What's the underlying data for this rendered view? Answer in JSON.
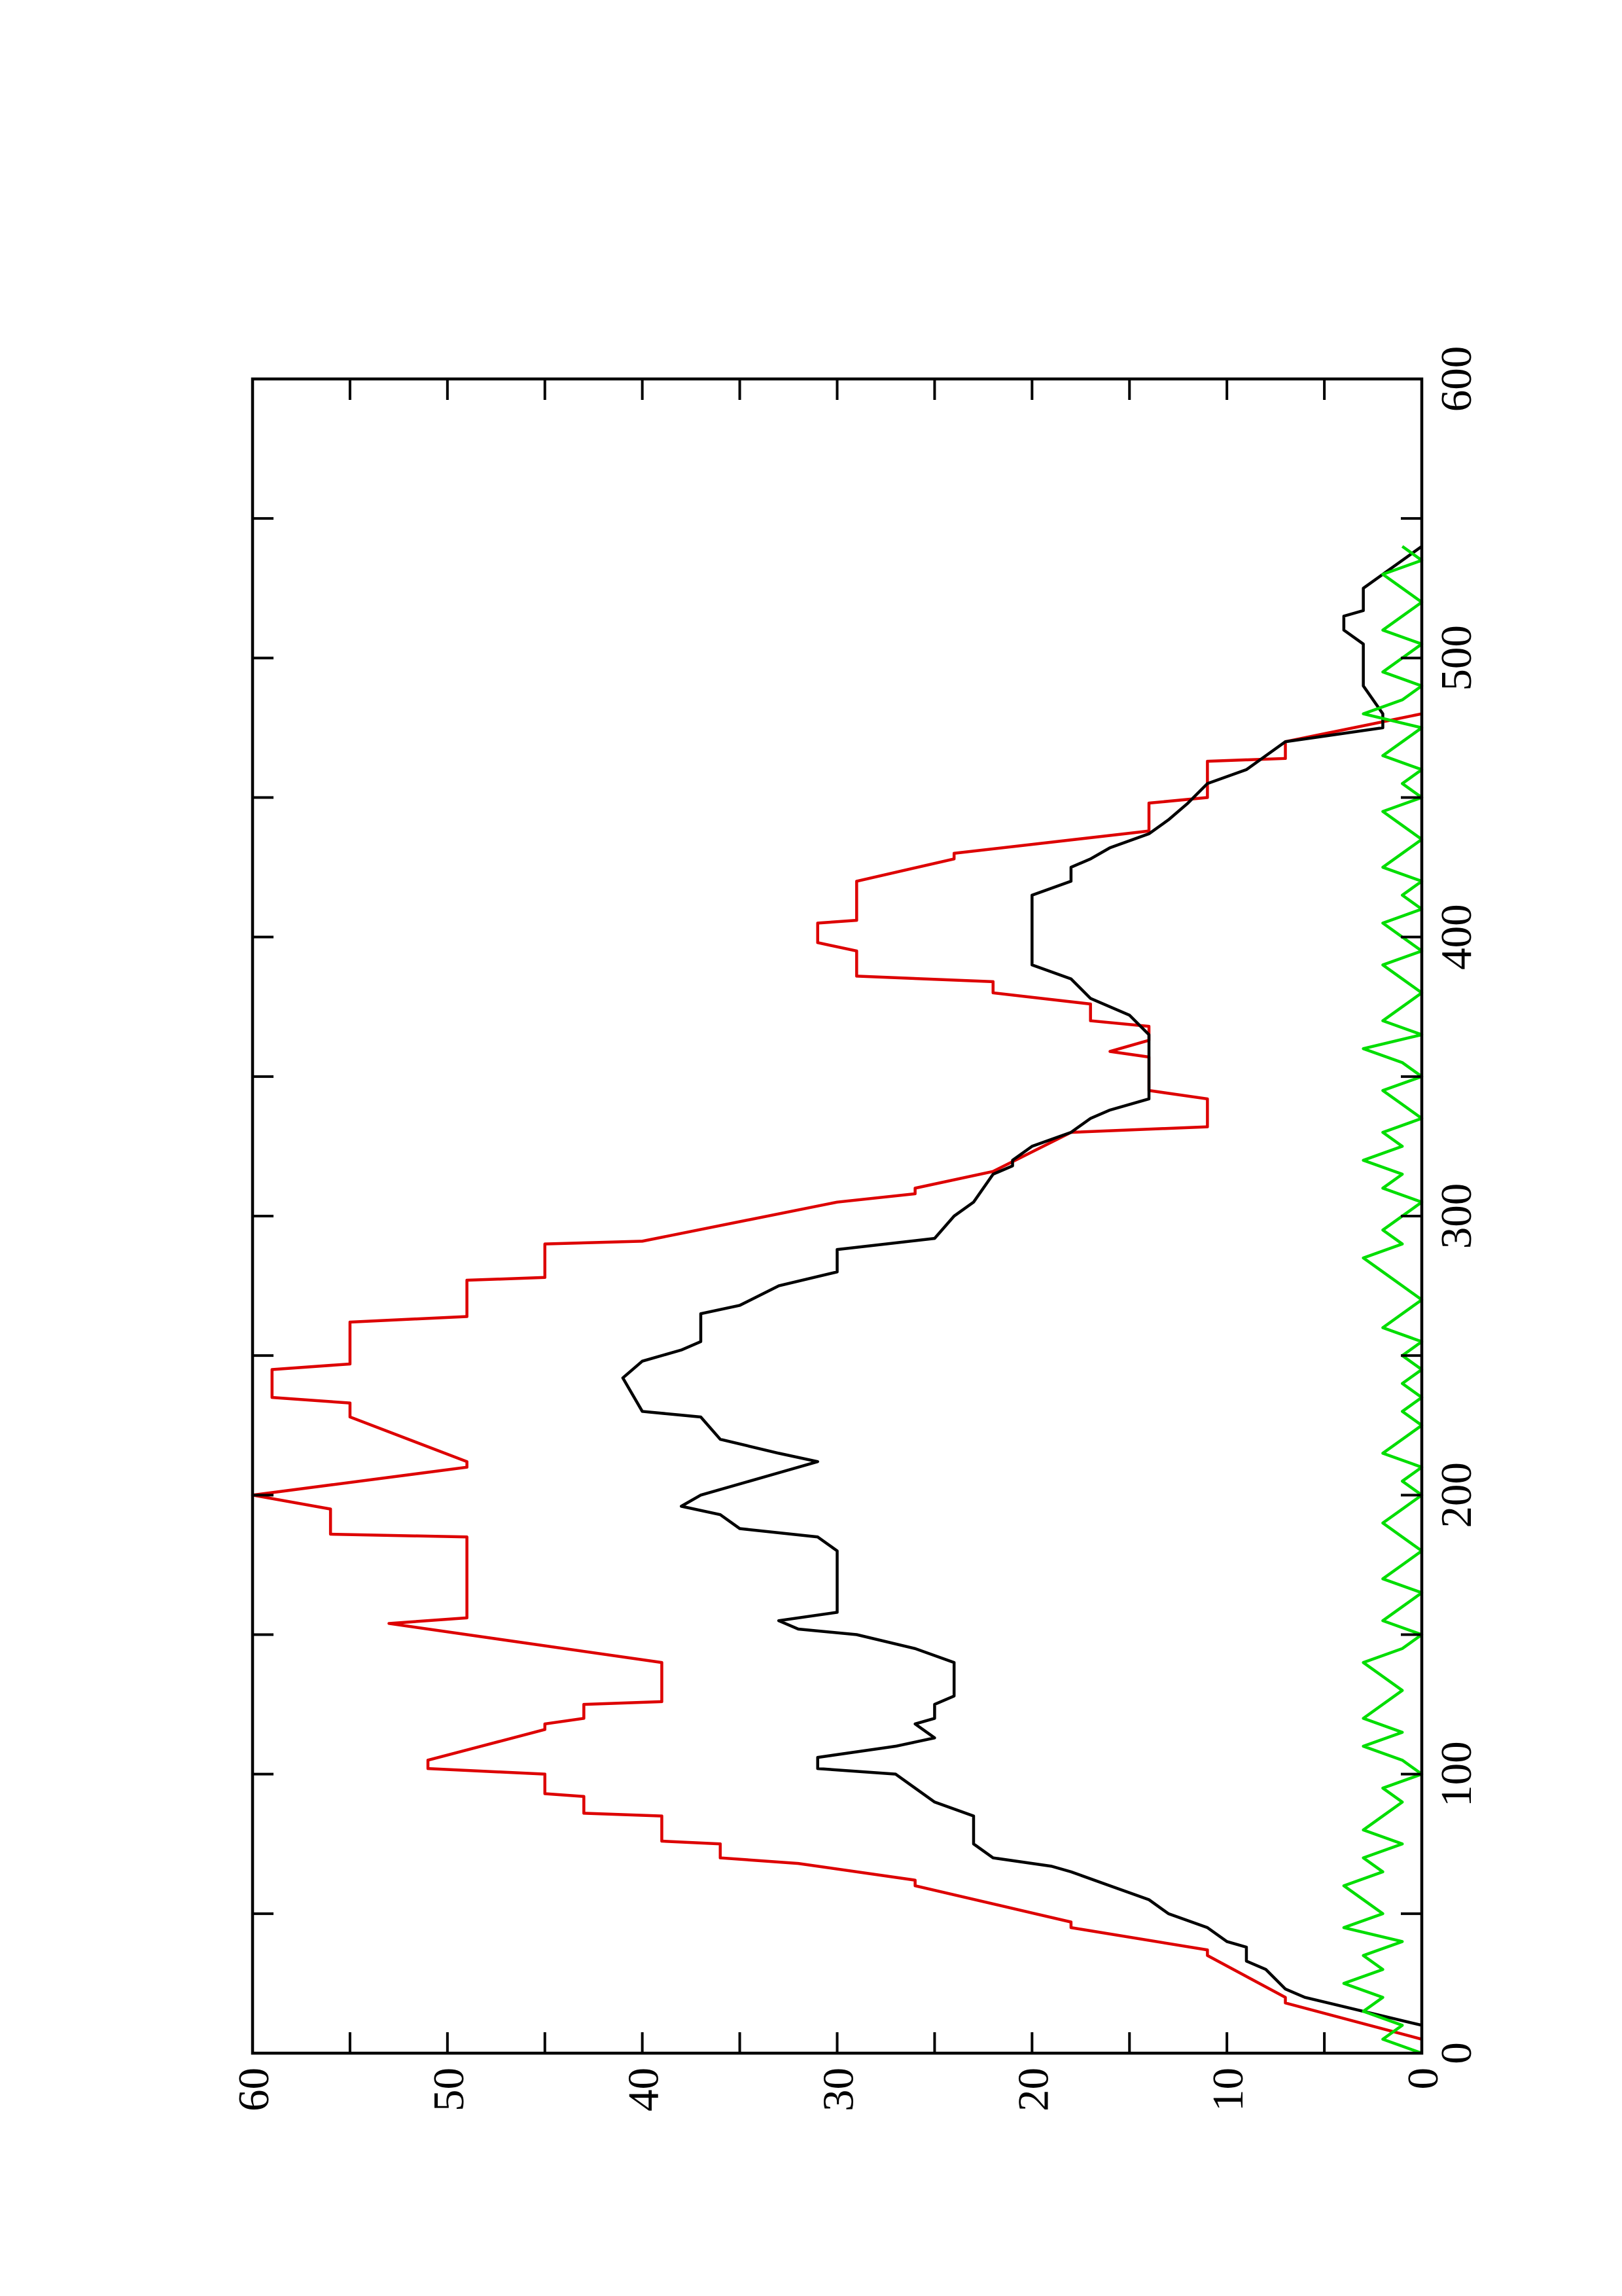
{
  "chart_data": {
    "type": "line",
    "xlim": [
      0,
      600
    ],
    "xticks": [
      0,
      100,
      200,
      300,
      400,
      500,
      600
    ],
    "xticks_minor": [
      50,
      150,
      250,
      350,
      450,
      550
    ],
    "ylim": [
      0,
      60
    ],
    "yticks": [
      0,
      10,
      20,
      30,
      40,
      50,
      60
    ],
    "yticks_minor": [
      5,
      15,
      25,
      35,
      45,
      55
    ],
    "series": [
      {
        "color": "#dd0000",
        "x": [
          5,
          18,
          20,
          35,
          37,
          45,
          47,
          60,
          62,
          68,
          70,
          75,
          76,
          85,
          86,
          92,
          93,
          100,
          102,
          105,
          116,
          118,
          120,
          125,
          126,
          140,
          154,
          156,
          185,
          186,
          195,
          200,
          210,
          212,
          228,
          233,
          235,
          245,
          247,
          262,
          264,
          277,
          278,
          290,
          291,
          305,
          308,
          310,
          316,
          330,
          332,
          342,
          345,
          357,
          359,
          363,
          368,
          370,
          376,
          380,
          384,
          386,
          395,
          398,
          405,
          406,
          420,
          428,
          430,
          438,
          448,
          450,
          463,
          464,
          470,
          480
        ],
        "values": [
          0,
          7,
          7,
          11,
          11,
          18,
          18,
          26,
          26,
          32,
          36,
          36,
          39,
          39,
          43,
          43,
          45,
          45,
          51,
          51,
          45,
          45,
          43,
          43,
          39,
          39,
          53,
          49,
          49,
          56,
          56,
          60,
          49,
          49,
          55,
          55,
          59,
          59,
          55,
          55,
          49,
          49,
          45,
          45,
          40,
          30,
          26,
          26,
          22,
          18,
          11,
          11,
          14,
          14,
          16,
          14,
          14,
          17,
          17,
          22,
          22,
          29,
          29,
          31,
          31,
          29,
          29,
          24,
          24,
          14,
          14,
          11,
          11,
          7,
          7,
          0
        ]
      },
      {
        "color": "#000000",
        "x": [
          10,
          15,
          20,
          23,
          30,
          33,
          38,
          40,
          45,
          50,
          55,
          60,
          65,
          67,
          70,
          75,
          80,
          85,
          90,
          95,
          100,
          102,
          106,
          110,
          113,
          118,
          120,
          125,
          128,
          135,
          140,
          145,
          150,
          152,
          155,
          158,
          165,
          175,
          180,
          185,
          188,
          193,
          196,
          200,
          208,
          212,
          215,
          220,
          228,
          230,
          242,
          248,
          252,
          255,
          265,
          268,
          275,
          280,
          288,
          292,
          300,
          305,
          315,
          318,
          320,
          325,
          330,
          335,
          338,
          342,
          350,
          358,
          365,
          372,
          378,
          385,
          390,
          395,
          400,
          405,
          410,
          415,
          420,
          425,
          428,
          432,
          437,
          442,
          448,
          455,
          460,
          465,
          470,
          475,
          480,
          490,
          500,
          505,
          510,
          515,
          517,
          525,
          530,
          540
        ],
        "values": [
          0,
          3,
          6,
          7,
          8,
          9,
          9,
          10,
          11,
          13,
          14,
          16,
          18,
          19,
          22,
          23,
          23,
          23,
          25,
          26,
          27,
          31,
          31,
          27,
          25,
          26,
          25,
          25,
          24,
          24,
          24,
          26,
          29,
          32,
          33,
          30,
          30,
          30,
          30,
          31,
          35,
          36,
          38,
          37,
          33,
          31,
          33,
          36,
          37,
          40,
          41,
          40,
          38,
          37,
          37,
          35,
          33,
          30,
          30,
          25,
          24,
          23,
          22,
          21,
          21,
          20,
          18,
          17,
          16,
          14,
          14,
          14,
          14,
          15,
          17,
          18,
          20,
          20,
          20,
          20,
          20,
          20,
          18,
          18,
          17,
          16,
          14,
          13,
          12,
          11,
          9,
          8,
          7,
          2,
          2,
          3,
          3,
          3,
          4,
          4,
          3,
          3,
          2,
          0
        ]
      },
      {
        "color": "#00dd00",
        "x": [
          0,
          5,
          10,
          15,
          20,
          25,
          30,
          35,
          40,
          45,
          50,
          55,
          60,
          65,
          70,
          75,
          80,
          85,
          90,
          95,
          100,
          105,
          110,
          115,
          120,
          125,
          130,
          135,
          140,
          145,
          150,
          155,
          160,
          165,
          170,
          175,
          180,
          185,
          190,
          195,
          200,
          205,
          210,
          215,
          220,
          225,
          230,
          235,
          240,
          245,
          250,
          255,
          260,
          265,
          270,
          275,
          280,
          285,
          290,
          295,
          300,
          305,
          310,
          315,
          320,
          325,
          330,
          335,
          340,
          345,
          350,
          355,
          360,
          365,
          370,
          375,
          380,
          385,
          390,
          395,
          400,
          405,
          410,
          415,
          420,
          425,
          430,
          435,
          440,
          445,
          450,
          455,
          460,
          465,
          470,
          475,
          480,
          485,
          490,
          495,
          500,
          505,
          510,
          515,
          520,
          525,
          530,
          535,
          540
        ],
        "values": [
          0,
          2,
          1,
          3,
          2,
          4,
          2,
          3,
          1,
          4,
          2,
          3,
          4,
          2,
          3,
          1,
          3,
          2,
          1,
          2,
          0,
          1,
          3,
          1,
          3,
          2,
          1,
          2,
          3,
          1,
          0,
          2,
          1,
          0,
          2,
          1,
          0,
          1,
          2,
          1,
          0,
          1,
          0,
          2,
          1,
          0,
          1,
          0,
          1,
          0,
          1,
          0,
          2,
          1,
          0,
          1,
          2,
          3,
          1,
          2,
          1,
          0,
          2,
          1,
          3,
          1,
          2,
          0,
          1,
          2,
          0,
          1,
          3,
          0,
          2,
          1,
          0,
          1,
          2,
          0,
          1,
          2,
          0,
          1,
          0,
          2,
          1,
          0,
          1,
          2,
          0,
          1,
          0,
          2,
          1,
          0,
          3,
          1,
          0,
          2,
          1,
          0,
          2,
          1,
          0,
          1,
          2,
          0,
          1
        ]
      }
    ]
  }
}
